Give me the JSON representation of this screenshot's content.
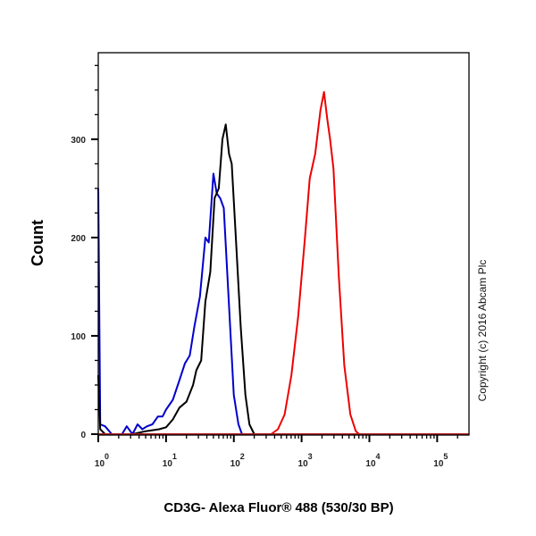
{
  "chart_data": {
    "type": "line",
    "title": "",
    "xlabel": "CD3G- Alexa Fluor® 488 (530/30 BP)",
    "ylabel": "Count",
    "x_scale": "log",
    "xlim": [
      1,
      295000
    ],
    "ylim": [
      0,
      388
    ],
    "y_ticks": [
      0,
      100,
      200,
      300
    ],
    "y_minor_step": 25,
    "x_tick_labels": [
      {
        "base": "10",
        "exp": "0",
        "value": 1
      },
      {
        "base": "10",
        "exp": "1",
        "value": 10
      },
      {
        "base": "10",
        "exp": "2",
        "value": 100
      },
      {
        "base": "10",
        "exp": "3",
        "value": 1000
      },
      {
        "base": "10",
        "exp": "4",
        "value": 10000
      },
      {
        "base": "10",
        "exp": "5",
        "value": 100000
      }
    ],
    "grid": false,
    "annotation": "Copyright (c) 2016 Abcam Plc",
    "series": [
      {
        "color": "#0000cc",
        "points": [
          [
            1,
            250
          ],
          [
            1.07,
            10
          ],
          [
            1.26,
            8
          ],
          [
            1.58,
            0
          ],
          [
            2.24,
            0
          ],
          [
            2.63,
            8
          ],
          [
            3.2,
            0
          ],
          [
            3.8,
            10
          ],
          [
            4.47,
            5
          ],
          [
            5.25,
            8
          ],
          [
            6.3,
            10
          ],
          [
            7.6,
            18
          ],
          [
            8.9,
            18
          ],
          [
            10,
            25
          ],
          [
            12.6,
            35
          ],
          [
            15.8,
            55
          ],
          [
            19,
            72
          ],
          [
            22.4,
            80
          ],
          [
            26.3,
            110
          ],
          [
            31.6,
            140
          ],
          [
            38,
            200
          ],
          [
            42.7,
            195
          ],
          [
            50,
            265
          ],
          [
            56,
            245
          ],
          [
            63,
            240
          ],
          [
            71,
            230
          ],
          [
            85,
            130
          ],
          [
            100,
            40
          ],
          [
            117,
            10
          ],
          [
            132,
            0
          ],
          [
            295000,
            0
          ]
        ]
      },
      {
        "color": "#000000",
        "points": [
          [
            1,
            60
          ],
          [
            1.07,
            5
          ],
          [
            1.26,
            0
          ],
          [
            3.2,
            0
          ],
          [
            5,
            3
          ],
          [
            7.9,
            5
          ],
          [
            10,
            7
          ],
          [
            12.6,
            15
          ],
          [
            15.8,
            27
          ],
          [
            20,
            33
          ],
          [
            25,
            50
          ],
          [
            28,
            65
          ],
          [
            33,
            75
          ],
          [
            38,
            135
          ],
          [
            45,
            165
          ],
          [
            52,
            240
          ],
          [
            60,
            250
          ],
          [
            68,
            300
          ],
          [
            76,
            315
          ],
          [
            85,
            285
          ],
          [
            93,
            275
          ],
          [
            107,
            200
          ],
          [
            126,
            110
          ],
          [
            148,
            40
          ],
          [
            170,
            10
          ],
          [
            200,
            0
          ],
          [
            295000,
            0
          ]
        ]
      },
      {
        "color": "#ee0000",
        "points": [
          [
            1,
            0
          ],
          [
            355,
            0
          ],
          [
            447,
            5
          ],
          [
            562,
            20
          ],
          [
            708,
            60
          ],
          [
            891,
            120
          ],
          [
            1122,
            200
          ],
          [
            1318,
            260
          ],
          [
            1585,
            285
          ],
          [
            1905,
            330
          ],
          [
            2138,
            348
          ],
          [
            2399,
            320
          ],
          [
            2630,
            300
          ],
          [
            2951,
            270
          ],
          [
            3548,
            160
          ],
          [
            4266,
            70
          ],
          [
            5248,
            20
          ],
          [
            6310,
            3
          ],
          [
            7079,
            0
          ],
          [
            295000,
            0
          ]
        ]
      }
    ]
  }
}
